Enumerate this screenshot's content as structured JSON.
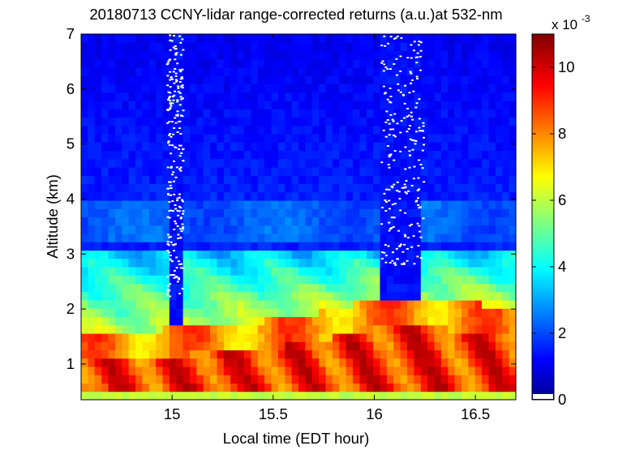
{
  "chart_data": {
    "type": "heatmap",
    "title": "20180713 CCNY-lidar range-corrected returns (a.u.)at 532-nm",
    "xlabel": "Local time (EDT hour)",
    "ylabel": "Altitude (km)",
    "xlim": [
      14.55,
      16.7
    ],
    "ylim": [
      0.35,
      7.0
    ],
    "xticks": [
      "15",
      "15.5",
      "16",
      "16.5"
    ],
    "xtick_values": [
      15,
      15.5,
      16,
      16.5
    ],
    "yticks": [
      "1",
      "2",
      "3",
      "4",
      "5",
      "6",
      "7"
    ],
    "ytick_values": [
      1,
      2,
      3,
      4,
      5,
      6,
      7
    ],
    "colorbar": {
      "scale_label": "x 10",
      "scale_exponent": "-3",
      "range": [
        0,
        11
      ],
      "ticks": [
        "0",
        "2",
        "4",
        "6",
        "8",
        "10"
      ],
      "tick_values": [
        0,
        2,
        4,
        6,
        8,
        10
      ],
      "colormap": "jet"
    },
    "features": {
      "boundary_layer_top_km": [
        {
          "t": 14.55,
          "h": 1.6
        },
        {
          "t": 14.7,
          "h": 1.55
        },
        {
          "t": 14.9,
          "h": 1.6
        },
        {
          "t": 15.1,
          "h": 1.7
        },
        {
          "t": 15.3,
          "h": 1.75
        },
        {
          "t": 15.5,
          "h": 1.8
        },
        {
          "t": 15.7,
          "h": 1.9
        },
        {
          "t": 15.9,
          "h": 2.1
        },
        {
          "t": 16.1,
          "h": 2.2
        },
        {
          "t": 16.3,
          "h": 2.15
        },
        {
          "t": 16.5,
          "h": 2.1
        },
        {
          "t": 16.7,
          "h": 2.05
        }
      ],
      "residual_layer_top_km": 3.1,
      "upper_aerosol_layer_km": 4.0,
      "cloud_gaps_hours": [
        [
          14.97,
          15.05
        ],
        [
          16.03,
          16.24
        ]
      ],
      "colors": {
        "background": "#ffffff",
        "missing_data": "#ffffff"
      }
    }
  }
}
